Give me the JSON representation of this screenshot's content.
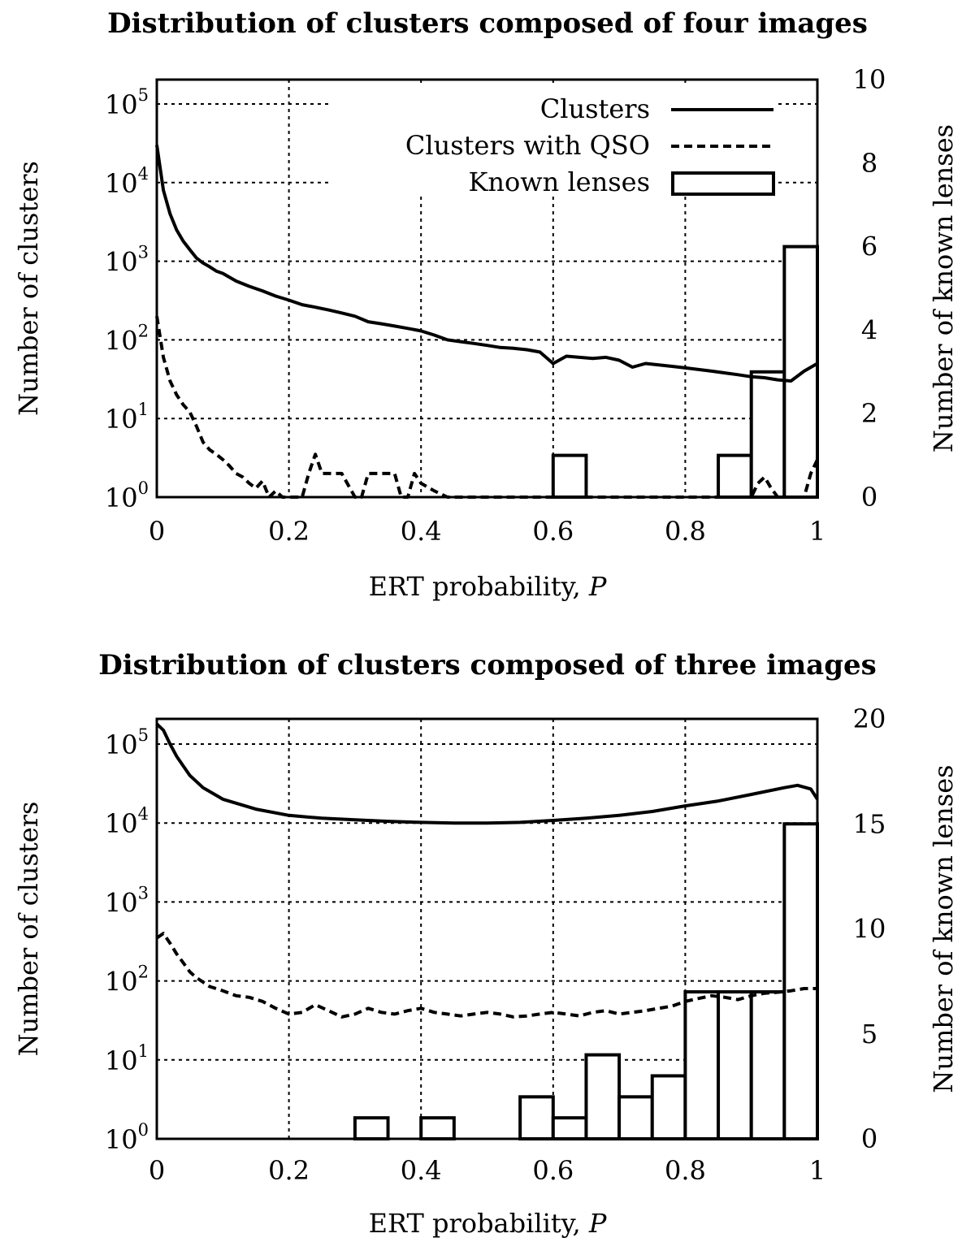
{
  "chart_data": [
    {
      "type": "line",
      "title": "Distribution of clusters composed of four images",
      "xlabel": "ERT probability, ",
      "xlabel_italic": "P",
      "ylabel": "Number of clusters",
      "y2label": "Number of known lenses",
      "xlim": [
        0,
        1
      ],
      "ylim": [
        1,
        200000
      ],
      "yscale": "log",
      "y2lim": [
        0,
        10
      ],
      "x_ticks": [
        "0",
        "0.2",
        "0.4",
        "0.6",
        "0.8",
        "1"
      ],
      "y_ticks": [
        {
          "base": "10",
          "exp": "0"
        },
        {
          "base": "10",
          "exp": "1"
        },
        {
          "base": "10",
          "exp": "2"
        },
        {
          "base": "10",
          "exp": "3"
        },
        {
          "base": "10",
          "exp": "4"
        },
        {
          "base": "10",
          "exp": "5"
        }
      ],
      "y2_ticks": [
        "0",
        "2",
        "4",
        "6",
        "8",
        "10"
      ],
      "grid": true,
      "legend_position": "top-right",
      "legend": [
        "Clusters",
        "Clusters with QSO",
        "Known lenses"
      ],
      "series": [
        {
          "name": "Clusters",
          "style": "solid",
          "x": [
            0,
            0.01,
            0.02,
            0.03,
            0.04,
            0.05,
            0.06,
            0.07,
            0.08,
            0.09,
            0.1,
            0.12,
            0.14,
            0.16,
            0.18,
            0.2,
            0.22,
            0.24,
            0.26,
            0.28,
            0.3,
            0.32,
            0.34,
            0.36,
            0.38,
            0.4,
            0.42,
            0.44,
            0.46,
            0.48,
            0.5,
            0.52,
            0.54,
            0.56,
            0.58,
            0.6,
            0.62,
            0.64,
            0.66,
            0.68,
            0.7,
            0.72,
            0.74,
            0.76,
            0.78,
            0.8,
            0.82,
            0.84,
            0.86,
            0.88,
            0.9,
            0.92,
            0.94,
            0.96,
            0.98,
            1.0
          ],
          "y": [
            30000,
            8000,
            4000,
            2500,
            1800,
            1400,
            1100,
            950,
            850,
            750,
            700,
            560,
            480,
            420,
            360,
            320,
            280,
            260,
            240,
            220,
            200,
            170,
            160,
            150,
            140,
            130,
            115,
            100,
            95,
            90,
            85,
            80,
            78,
            75,
            70,
            50,
            62,
            60,
            58,
            60,
            55,
            45,
            50,
            48,
            46,
            44,
            42,
            40,
            38,
            36,
            34,
            33,
            31,
            30,
            40,
            50
          ]
        },
        {
          "name": "Clusters with QSO",
          "style": "dashed",
          "x": [
            0,
            0.01,
            0.02,
            0.03,
            0.04,
            0.05,
            0.06,
            0.07,
            0.08,
            0.09,
            0.1,
            0.11,
            0.12,
            0.13,
            0.14,
            0.15,
            0.16,
            0.17,
            0.18,
            0.19,
            0.2,
            0.21,
            0.22,
            0.23,
            0.24,
            0.25,
            0.26,
            0.28,
            0.3,
            0.31,
            0.32,
            0.33,
            0.34,
            0.35,
            0.36,
            0.37,
            0.38,
            0.39,
            0.4,
            0.42,
            0.44,
            0.5,
            0.7,
            0.9,
            0.91,
            0.92,
            0.93,
            0.94,
            0.95,
            0.96,
            0.97,
            0.98,
            0.99,
            1.0
          ],
          "y": [
            200,
            60,
            30,
            20,
            15,
            12,
            8,
            5,
            4,
            3.5,
            3,
            2.5,
            2,
            1.8,
            1.5,
            1.3,
            1.6,
            1.0,
            1.2,
            0.5,
            1.0,
            0.5,
            0.5,
            2.0,
            3.5,
            2.0,
            2.0,
            2.0,
            1.0,
            1.0,
            2.0,
            2.0,
            2.0,
            2.0,
            2.0,
            1.0,
            0.5,
            2.0,
            1.5,
            1.2,
            1.0,
            1.0,
            1.0,
            1.0,
            1.5,
            1.8,
            1.3,
            1.0,
            0.5,
            0.5,
            0.5,
            0.5,
            2.0,
            3.0
          ]
        }
      ],
      "bars": {
        "name": "Known lenses",
        "bins": [
          [
            0.6,
            0.65
          ],
          [
            0.85,
            0.9
          ],
          [
            0.9,
            0.95
          ],
          [
            0.95,
            1.0
          ]
        ],
        "values": [
          1,
          1,
          3,
          6
        ]
      }
    },
    {
      "type": "line",
      "title": "Distribution of clusters composed of three images",
      "xlabel": "ERT probability, ",
      "xlabel_italic": "P",
      "ylabel": "Number of clusters",
      "y2label": "Number of known lenses",
      "xlim": [
        0,
        1
      ],
      "ylim": [
        1,
        200000
      ],
      "yscale": "log",
      "y2lim": [
        0,
        20
      ],
      "x_ticks": [
        "0",
        "0.2",
        "0.4",
        "0.6",
        "0.8",
        "1"
      ],
      "y_ticks": [
        {
          "base": "10",
          "exp": "0"
        },
        {
          "base": "10",
          "exp": "1"
        },
        {
          "base": "10",
          "exp": "2"
        },
        {
          "base": "10",
          "exp": "3"
        },
        {
          "base": "10",
          "exp": "4"
        },
        {
          "base": "10",
          "exp": "5"
        }
      ],
      "y2_ticks": [
        "0",
        "5",
        "10",
        "15",
        "20"
      ],
      "grid": true,
      "series": [
        {
          "name": "Clusters",
          "style": "solid",
          "x": [
            0,
            0.01,
            0.02,
            0.03,
            0.05,
            0.07,
            0.1,
            0.15,
            0.2,
            0.25,
            0.3,
            0.35,
            0.4,
            0.45,
            0.5,
            0.55,
            0.6,
            0.65,
            0.7,
            0.75,
            0.8,
            0.85,
            0.9,
            0.95,
            0.97,
            0.99,
            1.0
          ],
          "y": [
            180000,
            150000,
            100000,
            70000,
            40000,
            28000,
            20000,
            15000,
            12500,
            11500,
            11000,
            10500,
            10200,
            10000,
            10000,
            10200,
            10800,
            11500,
            12500,
            14000,
            16500,
            19000,
            23000,
            28000,
            30000,
            27000,
            20000
          ]
        },
        {
          "name": "Clusters with QSO",
          "style": "dashed",
          "x": [
            0,
            0.01,
            0.02,
            0.03,
            0.04,
            0.05,
            0.06,
            0.08,
            0.1,
            0.12,
            0.14,
            0.16,
            0.18,
            0.2,
            0.22,
            0.24,
            0.26,
            0.28,
            0.3,
            0.32,
            0.34,
            0.36,
            0.38,
            0.4,
            0.42,
            0.44,
            0.46,
            0.48,
            0.5,
            0.52,
            0.54,
            0.56,
            0.58,
            0.6,
            0.62,
            0.64,
            0.66,
            0.68,
            0.7,
            0.72,
            0.74,
            0.76,
            0.78,
            0.8,
            0.82,
            0.84,
            0.86,
            0.88,
            0.9,
            0.92,
            0.94,
            0.96,
            0.98,
            1.0
          ],
          "y": [
            350,
            400,
            300,
            220,
            170,
            130,
            110,
            85,
            75,
            65,
            62,
            55,
            45,
            38,
            40,
            50,
            42,
            35,
            38,
            45,
            40,
            38,
            42,
            45,
            40,
            38,
            36,
            38,
            40,
            38,
            35,
            36,
            38,
            40,
            38,
            36,
            40,
            42,
            38,
            40,
            42,
            45,
            48,
            55,
            60,
            65,
            62,
            58,
            65,
            70,
            72,
            75,
            80,
            80
          ]
        }
      ],
      "bars": {
        "name": "Known lenses",
        "bins": [
          [
            0.3,
            0.35
          ],
          [
            0.4,
            0.45
          ],
          [
            0.55,
            0.6
          ],
          [
            0.6,
            0.65
          ],
          [
            0.65,
            0.7
          ],
          [
            0.7,
            0.75
          ],
          [
            0.75,
            0.8
          ],
          [
            0.8,
            0.85
          ],
          [
            0.85,
            0.9
          ],
          [
            0.9,
            0.95
          ],
          [
            0.95,
            1.0
          ]
        ],
        "values": [
          1,
          1,
          2,
          1,
          4,
          2,
          3,
          7,
          7,
          7,
          15
        ]
      }
    }
  ]
}
